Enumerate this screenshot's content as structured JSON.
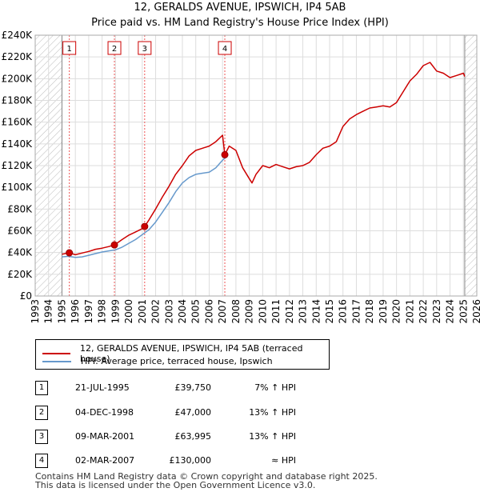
{
  "header": {
    "title": "12, GERALDS AVENUE, IPSWICH, IP4 5AB",
    "subtitle": "Price paid vs. HM Land Registry's House Price Index (HPI)"
  },
  "chart_data": {
    "type": "line",
    "title": "12, GERALDS AVENUE, IPSWICH, IP4 5AB",
    "subtitle": "Price paid vs. HM Land Registry's House Price Index (HPI)",
    "xlim": [
      1993,
      2026
    ],
    "ylim": [
      0,
      240000
    ],
    "x_ticks": [
      1993,
      1994,
      1995,
      1996,
      1997,
      1998,
      1999,
      2000,
      2001,
      2002,
      2003,
      2004,
      2005,
      2006,
      2007,
      2008,
      2009,
      2010,
      2011,
      2012,
      2013,
      2014,
      2015,
      2016,
      2017,
      2018,
      2019,
      2020,
      2021,
      2022,
      2023,
      2024,
      2025,
      2026
    ],
    "y_ticks": [
      {
        "value": 0,
        "label": "£0"
      },
      {
        "value": 20000,
        "label": "£20K"
      },
      {
        "value": 40000,
        "label": "£40K"
      },
      {
        "value": 60000,
        "label": "£60K"
      },
      {
        "value": 80000,
        "label": "£80K"
      },
      {
        "value": 100000,
        "label": "£100K"
      },
      {
        "value": 120000,
        "label": "£120K"
      },
      {
        "value": 140000,
        "label": "£140K"
      },
      {
        "value": 160000,
        "label": "£160K"
      },
      {
        "value": 180000,
        "label": "£180K"
      },
      {
        "value": 200000,
        "label": "£200K"
      },
      {
        "value": 220000,
        "label": "£220K"
      },
      {
        "value": 240000,
        "label": "£240K"
      }
    ],
    "hatched_ranges": [
      [
        1993,
        1995.0
      ],
      [
        2025.1,
        2026
      ]
    ],
    "series": [
      {
        "name": "12, GERALDS AVENUE, IPSWICH, IP4 5AB (terraced house)",
        "color": "#cc0000",
        "x": [
          1995.0,
          1995.55,
          1996.0,
          1996.5,
          1997.0,
          1997.5,
          1998.0,
          1998.5,
          1998.92,
          1999.5,
          2000.0,
          2000.5,
          2001.0,
          2001.18,
          2001.5,
          2002.0,
          2002.5,
          2003.0,
          2003.5,
          2004.0,
          2004.5,
          2005.0,
          2005.5,
          2006.0,
          2006.5,
          2007.0,
          2007.17,
          2007.5,
          2008.0,
          2008.5,
          2009.0,
          2009.2,
          2009.5,
          2010.0,
          2010.5,
          2011.0,
          2011.5,
          2012.0,
          2012.5,
          2013.0,
          2013.5,
          2014.0,
          2014.5,
          2015.0,
          2015.5,
          2016.0,
          2016.5,
          2017.0,
          2017.5,
          2018.0,
          2018.5,
          2019.0,
          2019.5,
          2020.0,
          2020.5,
          2021.0,
          2021.5,
          2022.0,
          2022.5,
          2023.0,
          2023.5,
          2024.0,
          2024.5,
          2025.0,
          2025.1
        ],
        "values": [
          38500,
          39750,
          38000,
          39500,
          41000,
          43000,
          44000,
          45500,
          47000,
          52000,
          56000,
          59000,
          62000,
          63995,
          70000,
          80000,
          91000,
          101000,
          112000,
          120000,
          129000,
          134000,
          136000,
          138000,
          142000,
          148000,
          130000,
          138000,
          134000,
          118000,
          108000,
          104000,
          112000,
          120000,
          118000,
          121000,
          119000,
          117000,
          119000,
          120000,
          123000,
          130000,
          136000,
          138000,
          142000,
          156000,
          163000,
          167000,
          170000,
          173000,
          174000,
          175000,
          174000,
          178000,
          188000,
          198000,
          204000,
          212000,
          215000,
          207000,
          205000,
          201000,
          203000,
          205000,
          202000
        ]
      },
      {
        "name": "HPI: Average price, terraced house, Ipswich",
        "color": "#6699cc",
        "x": [
          1995.0,
          1995.5,
          1996.0,
          1996.5,
          1997.0,
          1997.5,
          1998.0,
          1998.5,
          1999.0,
          1999.5,
          2000.0,
          2000.5,
          2001.0,
          2001.5,
          2002.0,
          2002.5,
          2003.0,
          2003.5,
          2004.0,
          2004.5,
          2005.0,
          2005.5,
          2006.0,
          2006.5,
          2007.0,
          2007.2
        ],
        "values": [
          36000,
          36500,
          35500,
          36000,
          37500,
          39000,
          40500,
          41500,
          42500,
          45000,
          48500,
          52000,
          56500,
          61000,
          68000,
          77000,
          86000,
          96000,
          104000,
          109000,
          112000,
          113000,
          114000,
          118000,
          125000,
          127000
        ]
      }
    ],
    "sales": [
      {
        "label": "1",
        "x": 1995.55,
        "price": 39750
      },
      {
        "label": "2",
        "x": 1998.92,
        "price": 47000
      },
      {
        "label": "3",
        "x": 2001.18,
        "price": 63995
      },
      {
        "label": "4",
        "x": 2007.17,
        "price": 130000
      }
    ]
  },
  "legend": [
    {
      "label": "12, GERALDS AVENUE, IPSWICH, IP4 5AB (terraced house)",
      "color": "#cc0000"
    },
    {
      "label": "HPI: Average price, terraced house, Ipswich",
      "color": "#6699cc"
    }
  ],
  "transactions": [
    {
      "num": "1",
      "date": "21-JUL-1995",
      "price": "£39,750",
      "hpi": "7% ↑ HPI"
    },
    {
      "num": "2",
      "date": "04-DEC-1998",
      "price": "£47,000",
      "hpi": "13% ↑ HPI"
    },
    {
      "num": "3",
      "date": "09-MAR-2001",
      "price": "£63,995",
      "hpi": "13% ↑ HPI"
    },
    {
      "num": "4",
      "date": "02-MAR-2007",
      "price": "£130,000",
      "hpi": "≈ HPI"
    }
  ],
  "footer": {
    "line1": "Contains HM Land Registry data © Crown copyright and database right 2025.",
    "line2": "This data is licensed under the Open Government Licence v3.0."
  }
}
